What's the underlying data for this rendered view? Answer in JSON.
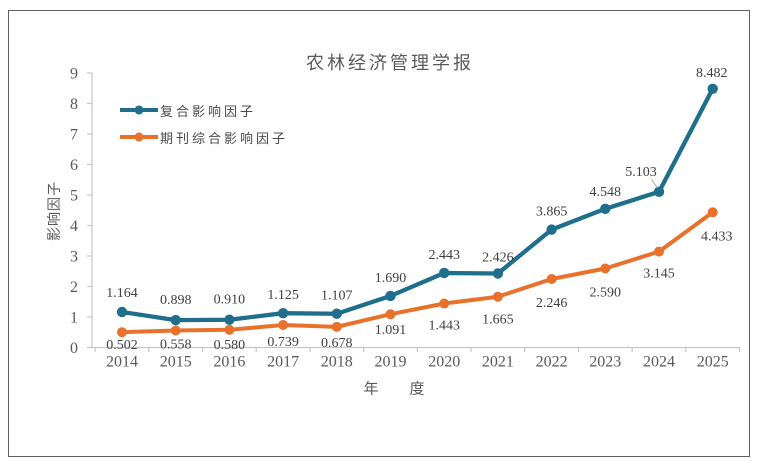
{
  "chart_data": {
    "type": "line",
    "title": "农林经济管理学报",
    "xlabel": "年　度",
    "ylabel": "影响因子",
    "ylim": [
      0,
      9
    ],
    "ytick_step": 1,
    "grid": "off",
    "legend_position": "top-left-inside",
    "categories": [
      "2014",
      "2015",
      "2016",
      "2017",
      "2018",
      "2019",
      "2020",
      "2021",
      "2022",
      "2023",
      "2024",
      "2025"
    ],
    "series": [
      {
        "name": "复合影响因子",
        "color": "#1F6E8C",
        "values": [
          1.164,
          0.898,
          0.91,
          1.125,
          1.107,
          1.69,
          2.443,
          2.426,
          3.865,
          4.548,
          5.103,
          8.482
        ]
      },
      {
        "name": "期刊综合影响因子",
        "color": "#E8722C",
        "values": [
          0.502,
          0.558,
          0.58,
          0.739,
          0.678,
          1.091,
          1.443,
          1.665,
          2.246,
          2.59,
          3.145,
          4.433
        ]
      }
    ],
    "value_decimals": 3,
    "axis_color": "#C6C6C6",
    "tick_label_color": "#595959",
    "data_label_color": "#404040",
    "leader_line_color": "#A6A6A6",
    "title_color": "#5A5A5A"
  }
}
